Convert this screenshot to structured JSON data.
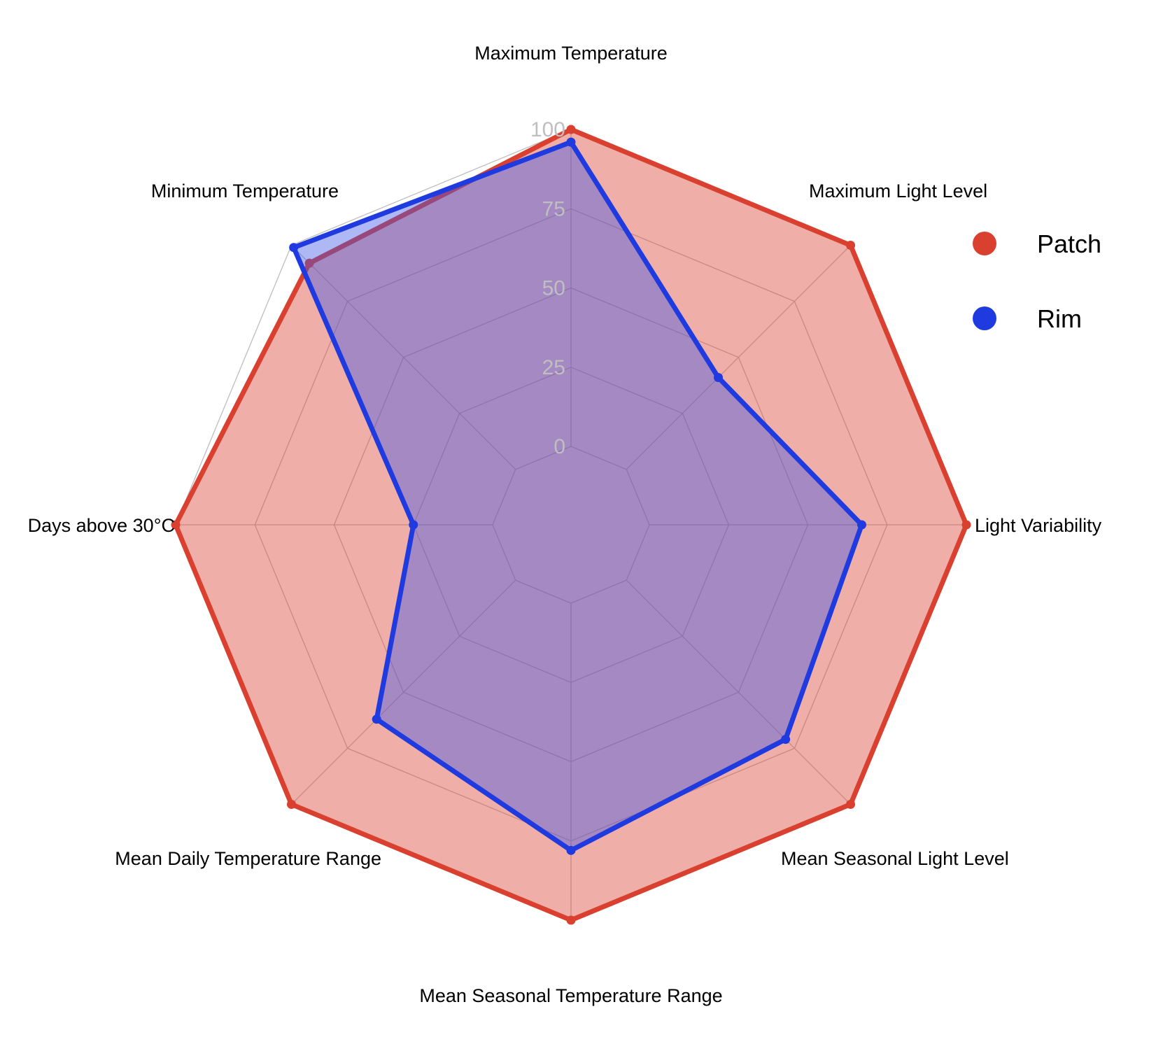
{
  "chart_data": {
    "type": "radar",
    "axes": [
      "Maximum Temperature",
      "Maximum Light Level",
      "Light Variability",
      "Mean Seasonal Light Level",
      "Mean Seasonal Temperature Range",
      "Mean Daily Temperature Range",
      "Days above 30°C",
      "Minimum Temperature"
    ],
    "rlim": [
      0,
      100
    ],
    "ticks": [
      "0",
      "25",
      "50",
      "75",
      "100"
    ],
    "tick_values": [
      0,
      25,
      50,
      75,
      100
    ],
    "grid": true,
    "legend_position": "right",
    "series": [
      {
        "name": "Patch",
        "color": "#d9402f",
        "fill": "#d9402f",
        "values": [
          100,
          100,
          100,
          100,
          100,
          100,
          100,
          92
        ]
      },
      {
        "name": "Rim",
        "color": "#1f3be0",
        "fill": "#3f55e6",
        "values": [
          96,
          41,
          67,
          71,
          78,
          62,
          25,
          99
        ]
      }
    ]
  }
}
